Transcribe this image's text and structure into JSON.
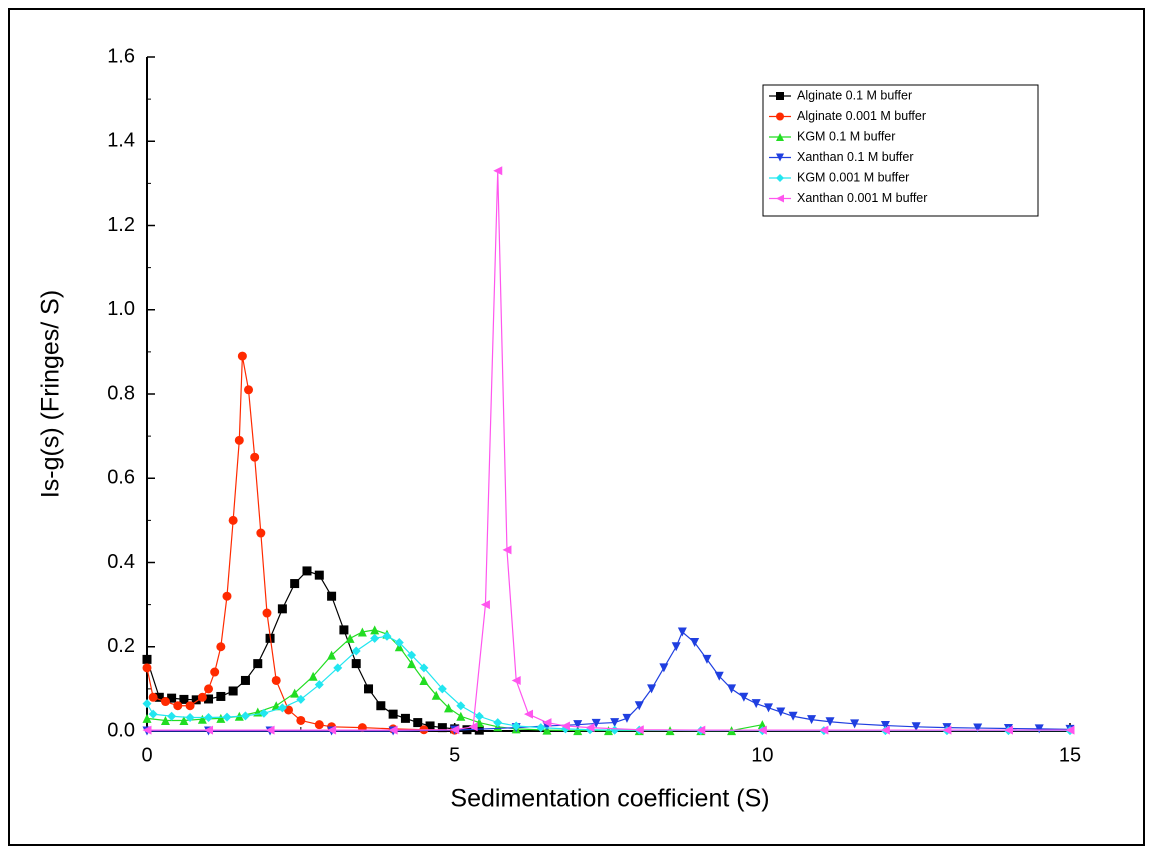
{
  "chart_data": {
    "type": "line",
    "xlabel": "Sedimentation coefficient (S)",
    "ylabel": "Is-g(s) (Fringes/ S)",
    "xlim": [
      0,
      15
    ],
    "xticks": [
      0,
      5,
      10,
      15
    ],
    "ylim": [
      0,
      1.6
    ],
    "yticks": [
      {
        "value": 0,
        "label": "0.0"
      },
      0.2,
      0.4,
      0.6,
      0.8,
      {
        "value": 1,
        "label": "1.0"
      },
      1.2,
      1.4,
      1.6
    ],
    "legend": "top-right",
    "series": [
      {
        "name": "Alginate 0.1 M buffer",
        "color": "#000000",
        "marker": "square",
        "x": [
          0,
          0.2,
          0.4,
          0.6,
          0.8,
          1.0,
          1.2,
          1.4,
          1.6,
          1.8,
          2.0,
          2.2,
          2.4,
          2.6,
          2.8,
          3.0,
          3.2,
          3.4,
          3.6,
          3.8,
          4.0,
          4.2,
          4.4,
          4.6,
          4.8,
          5.0,
          5.2,
          5.4
        ],
        "values": [
          0.17,
          0.08,
          0.078,
          0.075,
          0.074,
          0.076,
          0.082,
          0.095,
          0.12,
          0.16,
          0.22,
          0.29,
          0.35,
          0.38,
          0.37,
          0.32,
          0.24,
          0.16,
          0.1,
          0.06,
          0.04,
          0.03,
          0.02,
          0.012,
          0.008,
          0.005,
          0.003,
          0.002
        ]
      },
      {
        "name": "Alginate 0.001 M buffer",
        "color": "#ff2a00",
        "marker": "circle",
        "x": [
          0,
          0.1,
          0.3,
          0.5,
          0.7,
          0.9,
          1.0,
          1.1,
          1.2,
          1.3,
          1.4,
          1.5,
          1.55,
          1.65,
          1.75,
          1.85,
          1.95,
          2.1,
          2.3,
          2.5,
          2.8,
          3.0,
          3.5,
          4.0,
          4.5,
          5.0
        ],
        "values": [
          0.15,
          0.08,
          0.07,
          0.06,
          0.06,
          0.08,
          0.1,
          0.14,
          0.2,
          0.32,
          0.5,
          0.69,
          0.89,
          0.81,
          0.65,
          0.47,
          0.28,
          0.12,
          0.05,
          0.025,
          0.015,
          0.01,
          0.008,
          0.005,
          0.003,
          0.002
        ]
      },
      {
        "name": "KGM 0.1 M buffer",
        "color": "#22dd22",
        "marker": "triangle-up",
        "x": [
          0,
          0.3,
          0.6,
          0.9,
          1.2,
          1.5,
          1.8,
          2.1,
          2.4,
          2.7,
          3.0,
          3.3,
          3.5,
          3.7,
          3.9,
          4.1,
          4.3,
          4.5,
          4.7,
          4.9,
          5.1,
          5.4,
          5.7,
          6.0,
          6.5,
          7,
          7.5,
          8,
          8.5,
          9,
          9.5,
          10
        ],
        "values": [
          0.03,
          0.025,
          0.025,
          0.028,
          0.03,
          0.035,
          0.045,
          0.06,
          0.09,
          0.13,
          0.18,
          0.22,
          0.235,
          0.24,
          0.23,
          0.2,
          0.16,
          0.12,
          0.085,
          0.055,
          0.035,
          0.02,
          0.01,
          0.005,
          0.002,
          0.001,
          0.001,
          0.001,
          0.001,
          0.001,
          0.001,
          0.015
        ]
      },
      {
        "name": "Xanthan 0.1 M buffer",
        "color": "#1f3fe0",
        "marker": "triangle-down",
        "x": [
          0,
          1,
          2,
          3,
          4,
          5,
          6,
          6.5,
          7,
          7.3,
          7.6,
          7.8,
          8.0,
          8.2,
          8.4,
          8.6,
          8.7,
          8.9,
          9.1,
          9.3,
          9.5,
          9.7,
          9.9,
          10.1,
          10.3,
          10.5,
          10.8,
          11.1,
          11.5,
          12,
          12.5,
          13,
          13.5,
          14,
          14.5,
          15
        ],
        "values": [
          0,
          0,
          0,
          0,
          0,
          0.002,
          0.008,
          0.012,
          0.015,
          0.018,
          0.02,
          0.03,
          0.06,
          0.1,
          0.15,
          0.2,
          0.235,
          0.21,
          0.17,
          0.13,
          0.1,
          0.08,
          0.065,
          0.055,
          0.045,
          0.035,
          0.027,
          0.022,
          0.017,
          0.013,
          0.01,
          0.008,
          0.007,
          0.006,
          0.005,
          0.004
        ]
      },
      {
        "name": "KGM 0.001 M buffer",
        "color": "#22e6f0",
        "marker": "diamond",
        "x": [
          0,
          0.1,
          0.4,
          0.7,
          1.0,
          1.3,
          1.6,
          1.9,
          2.2,
          2.5,
          2.8,
          3.1,
          3.4,
          3.7,
          3.9,
          4.1,
          4.3,
          4.5,
          4.8,
          5.1,
          5.4,
          5.7,
          6.0,
          6.4,
          6.8,
          7.2,
          7.6,
          8,
          9,
          10,
          11,
          12,
          13,
          14,
          15
        ],
        "values": [
          0.065,
          0.04,
          0.035,
          0.032,
          0.032,
          0.033,
          0.036,
          0.042,
          0.055,
          0.075,
          0.11,
          0.15,
          0.19,
          0.22,
          0.225,
          0.21,
          0.18,
          0.15,
          0.1,
          0.06,
          0.035,
          0.02,
          0.012,
          0.008,
          0.005,
          0.003,
          0.002,
          0.002,
          0.001,
          0.001,
          0.001,
          0.001,
          0.001,
          0.001,
          0.001
        ]
      },
      {
        "name": "Xanthan 0.001 M buffer",
        "color": "#ff55ee",
        "marker": "triangle-left",
        "x": [
          0,
          1,
          2,
          3,
          4,
          5,
          5.3,
          5.5,
          5.7,
          5.85,
          6.0,
          6.2,
          6.5,
          6.8,
          7.2,
          8,
          9,
          10,
          11,
          12,
          13,
          14,
          15
        ],
        "values": [
          0.002,
          0.002,
          0.002,
          0.002,
          0.002,
          0.003,
          0.01,
          0.3,
          1.33,
          0.43,
          0.12,
          0.04,
          0.02,
          0.012,
          0.008,
          0.003,
          0.002,
          0.002,
          0.002,
          0.002,
          0.002,
          0.002,
          0.002
        ]
      }
    ]
  }
}
